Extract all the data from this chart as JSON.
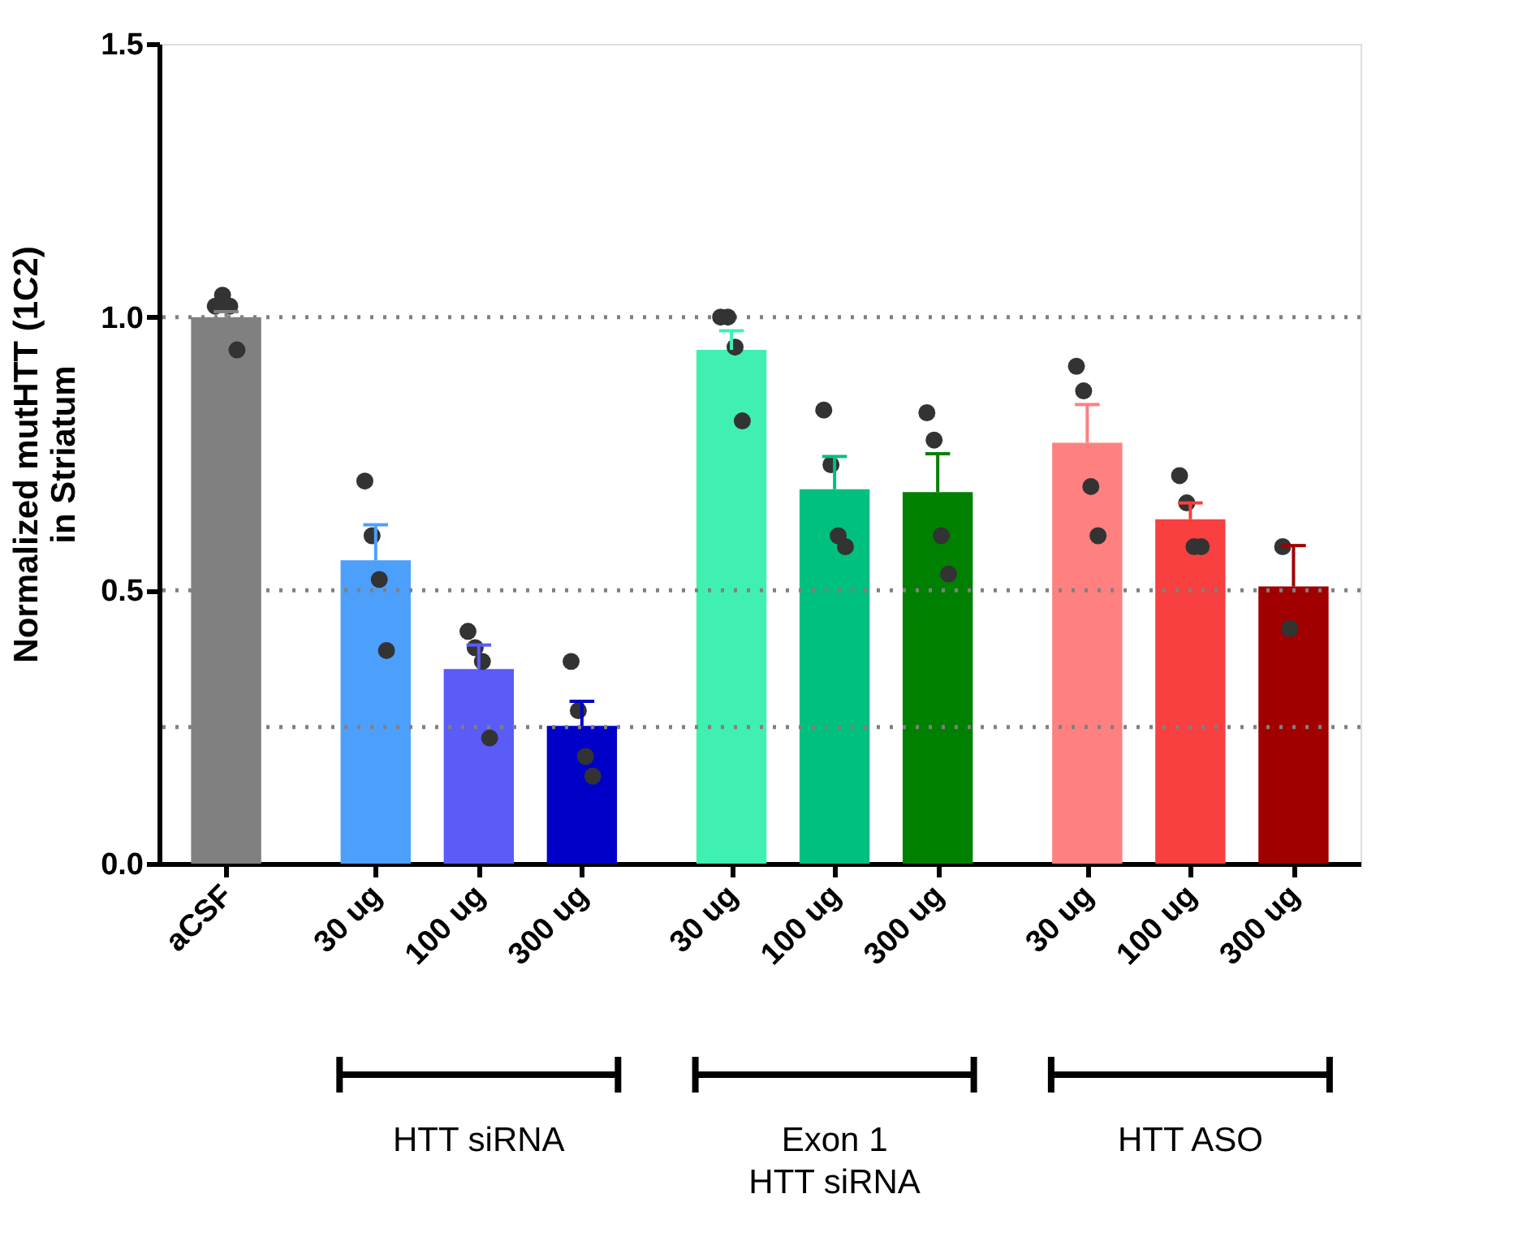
{
  "chart_data": {
    "type": "bar",
    "ylabel": "Normalized mutHTT (1C2)\nin Striatum",
    "categories": [
      "aCSF",
      "30 ug",
      "100 ug",
      "300 ug",
      "30 ug",
      "100 ug",
      "300 ug",
      "30 ug",
      "100 ug",
      "300 ug"
    ],
    "ylim": [
      0,
      1.5
    ],
    "yticks": [
      {
        "value": 0,
        "label": "0.0"
      },
      {
        "value": 0.5,
        "label": "0.5"
      },
      {
        "value": 1,
        "label": "1.0"
      },
      {
        "value": 1.5,
        "label": "1.5"
      }
    ],
    "grid": false,
    "legend": false,
    "ref_lines": [
      {
        "axis": "y",
        "value": 0.25,
        "color": "#808080",
        "line_style": "dotted"
      },
      {
        "axis": "y",
        "value": 0.5,
        "color": "#808080",
        "line_style": "dotted"
      },
      {
        "axis": "y",
        "value": 1.0,
        "color": "#808080",
        "line_style": "dotted"
      }
    ],
    "annotations": [
      "HTT siRNA",
      "Exon 1\nHTT siRNA",
      "HTT ASO"
    ],
    "series": [
      {
        "type": "bar",
        "colors": [
          "#808080",
          "#4d9ffc",
          "#5b5bf8",
          "#0000c8",
          "#40f0b0",
          "#00c080",
          "#008000",
          "#ff8080",
          "#f84040",
          "#a00000"
        ],
        "values": [
          1.0,
          0.555,
          0.356,
          0.252,
          0.94,
          0.685,
          0.68,
          0.77,
          0.63,
          0.507
        ],
        "errors": [
          [
            1.0,
            1.01
          ],
          [
            0.555,
            0.62
          ],
          [
            0.356,
            0.4
          ],
          [
            0.252,
            0.297
          ],
          [
            0.94,
            0.975
          ],
          [
            0.685,
            0.745
          ],
          [
            0.68,
            0.75
          ],
          [
            0.77,
            0.84
          ],
          [
            0.63,
            0.66
          ],
          [
            0.507,
            0.582
          ]
        ]
      },
      {
        "type": "scatter",
        "color": "#333333",
        "marker": "circle",
        "values": [
          1.02,
          0.7,
          0.425,
          0.37,
          1.0,
          0.83,
          0.825,
          0.91,
          0.71,
          0.58
        ]
      },
      {
        "type": "scatter",
        "color": "#333333",
        "marker": "circle",
        "values": [
          1.04,
          0.6,
          0.395,
          0.28,
          1.0,
          0.73,
          0.775,
          0.865,
          0.66,
          0.43
        ]
      },
      {
        "type": "scatter",
        "color": "#333333",
        "marker": "circle",
        "values": [
          1.02,
          0.52,
          0.37,
          0.196,
          0.945,
          0.6,
          0.6,
          0.69,
          0.58,
          null
        ]
      },
      {
        "type": "scatter",
        "color": "#333333",
        "marker": "circle",
        "values": [
          0.94,
          0.39,
          0.23,
          0.16,
          0.81,
          0.58,
          0.53,
          0.6,
          0.58,
          null
        ]
      }
    ]
  }
}
